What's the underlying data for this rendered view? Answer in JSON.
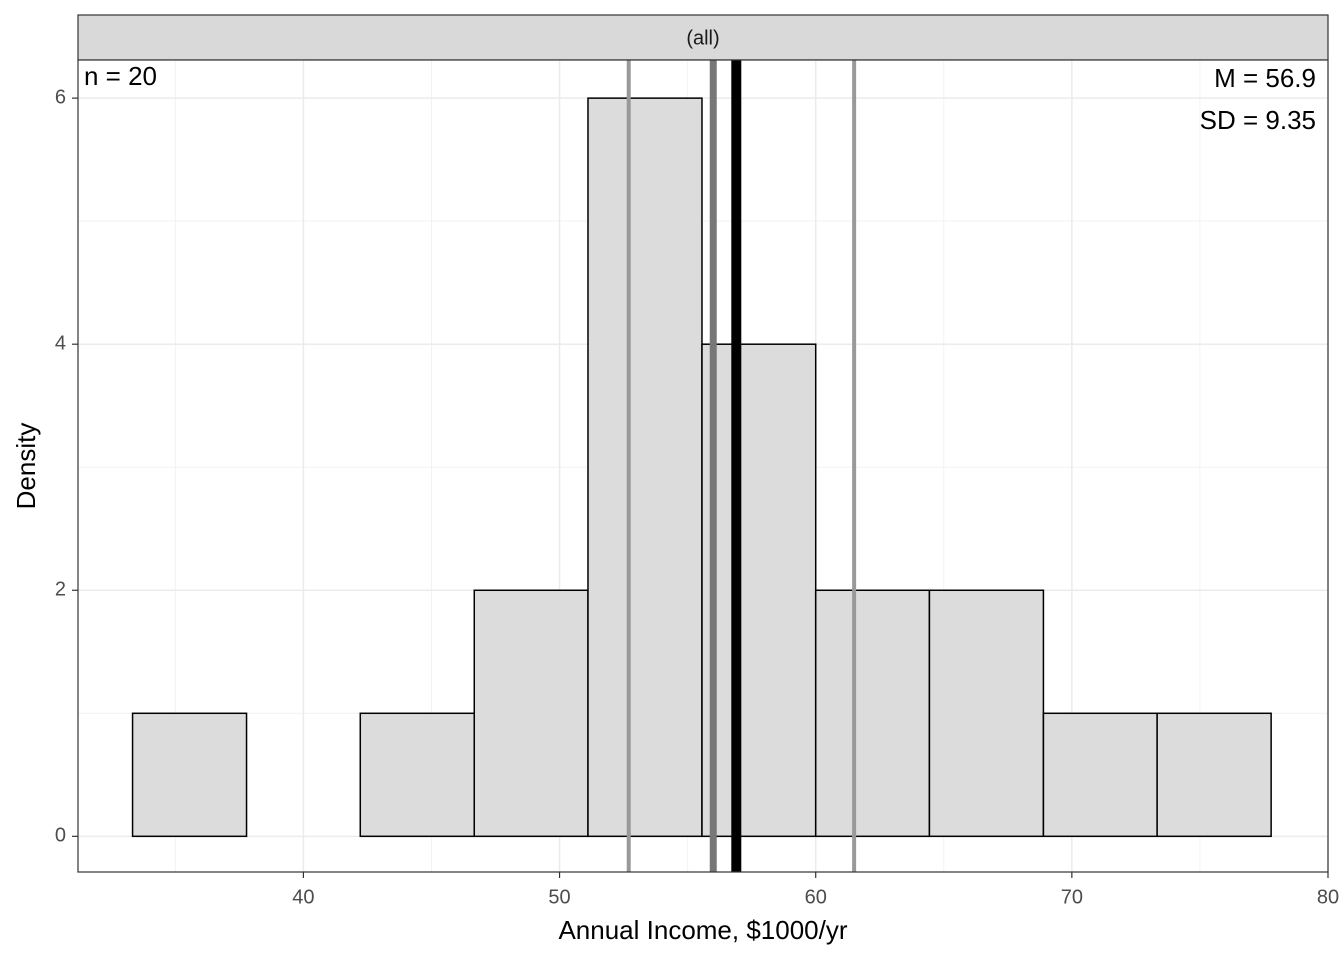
{
  "chart_data": {
    "type": "histogram",
    "facet_label": "(all)",
    "xlabel": "Annual Income, $1000/yr",
    "ylabel": "Density",
    "bins": [
      33.33,
      37.78,
      42.22,
      46.67,
      51.11,
      55.56,
      60.0,
      64.44,
      68.89,
      73.33,
      77.78
    ],
    "values": [
      1,
      0,
      1,
      2,
      6,
      4,
      2,
      2,
      1,
      1
    ],
    "color": "#dcdcdc",
    "edgecolor": "#000000",
    "xlim": [
      31.2,
      80
    ],
    "ylim": [
      -0.29,
      6.31
    ],
    "xticks": [
      40,
      50,
      60,
      70,
      80
    ],
    "yticks": [
      0,
      2,
      4,
      6
    ],
    "x_minor_grid": [
      35,
      45,
      55,
      65,
      75
    ],
    "y_minor_grid": [
      1,
      3,
      5
    ],
    "grid": true,
    "vlines": [
      {
        "value": 52.7,
        "color": "#999999",
        "width": 4
      },
      {
        "value": 61.5,
        "color": "#999999",
        "width": 4
      },
      {
        "value": 56.0,
        "color": "#777777",
        "width": 7
      },
      {
        "value": 56.9,
        "color": "#000000",
        "width": 10
      }
    ],
    "annotations": [
      {
        "text": "n = 20",
        "position": "top-left"
      },
      {
        "text": "M = 56.9",
        "position": "top-right"
      },
      {
        "text": "SD = 9.35",
        "position": "top-right"
      }
    ]
  }
}
